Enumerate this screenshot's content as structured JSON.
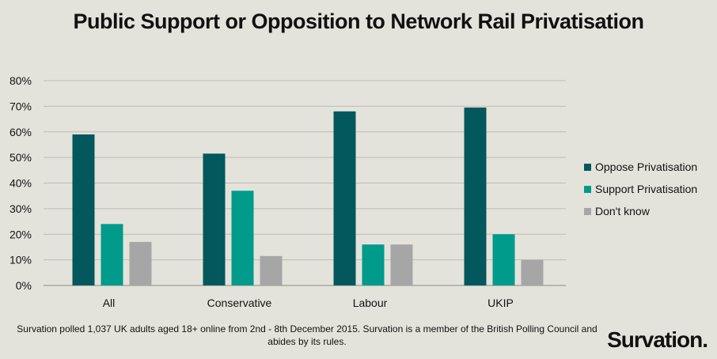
{
  "chart_data": {
    "type": "bar",
    "title": "Public Support or Opposition to Network Rail Privatisation",
    "categories": [
      "All",
      "Conservative",
      "Labour",
      "UKIP"
    ],
    "series": [
      {
        "name": "Oppose Privatisation",
        "values": [
          59,
          51.5,
          68,
          69.5
        ],
        "color": "#02585c"
      },
      {
        "name": "Support Privatisation",
        "values": [
          24,
          37,
          16,
          20
        ],
        "color": "#009b8a"
      },
      {
        "name": "Don't know",
        "values": [
          17,
          11.5,
          16,
          10
        ],
        "color": "#a6a6a6"
      }
    ],
    "ylim": [
      0,
      80
    ],
    "yticks": [
      0,
      10,
      20,
      30,
      40,
      50,
      60,
      70,
      80
    ],
    "ytick_labels": [
      "0%",
      "10%",
      "20%",
      "30%",
      "40%",
      "50%",
      "60%",
      "70%",
      "80%"
    ],
    "grid": true,
    "legend": "right",
    "xlabel": "",
    "ylabel": ""
  },
  "footnote": "Survation polled 1,037 UK adults aged 18+ online from 2nd - 8th December 2015. Survation is a member of the British Polling Council and abides by its rules.",
  "logo": "Survation."
}
